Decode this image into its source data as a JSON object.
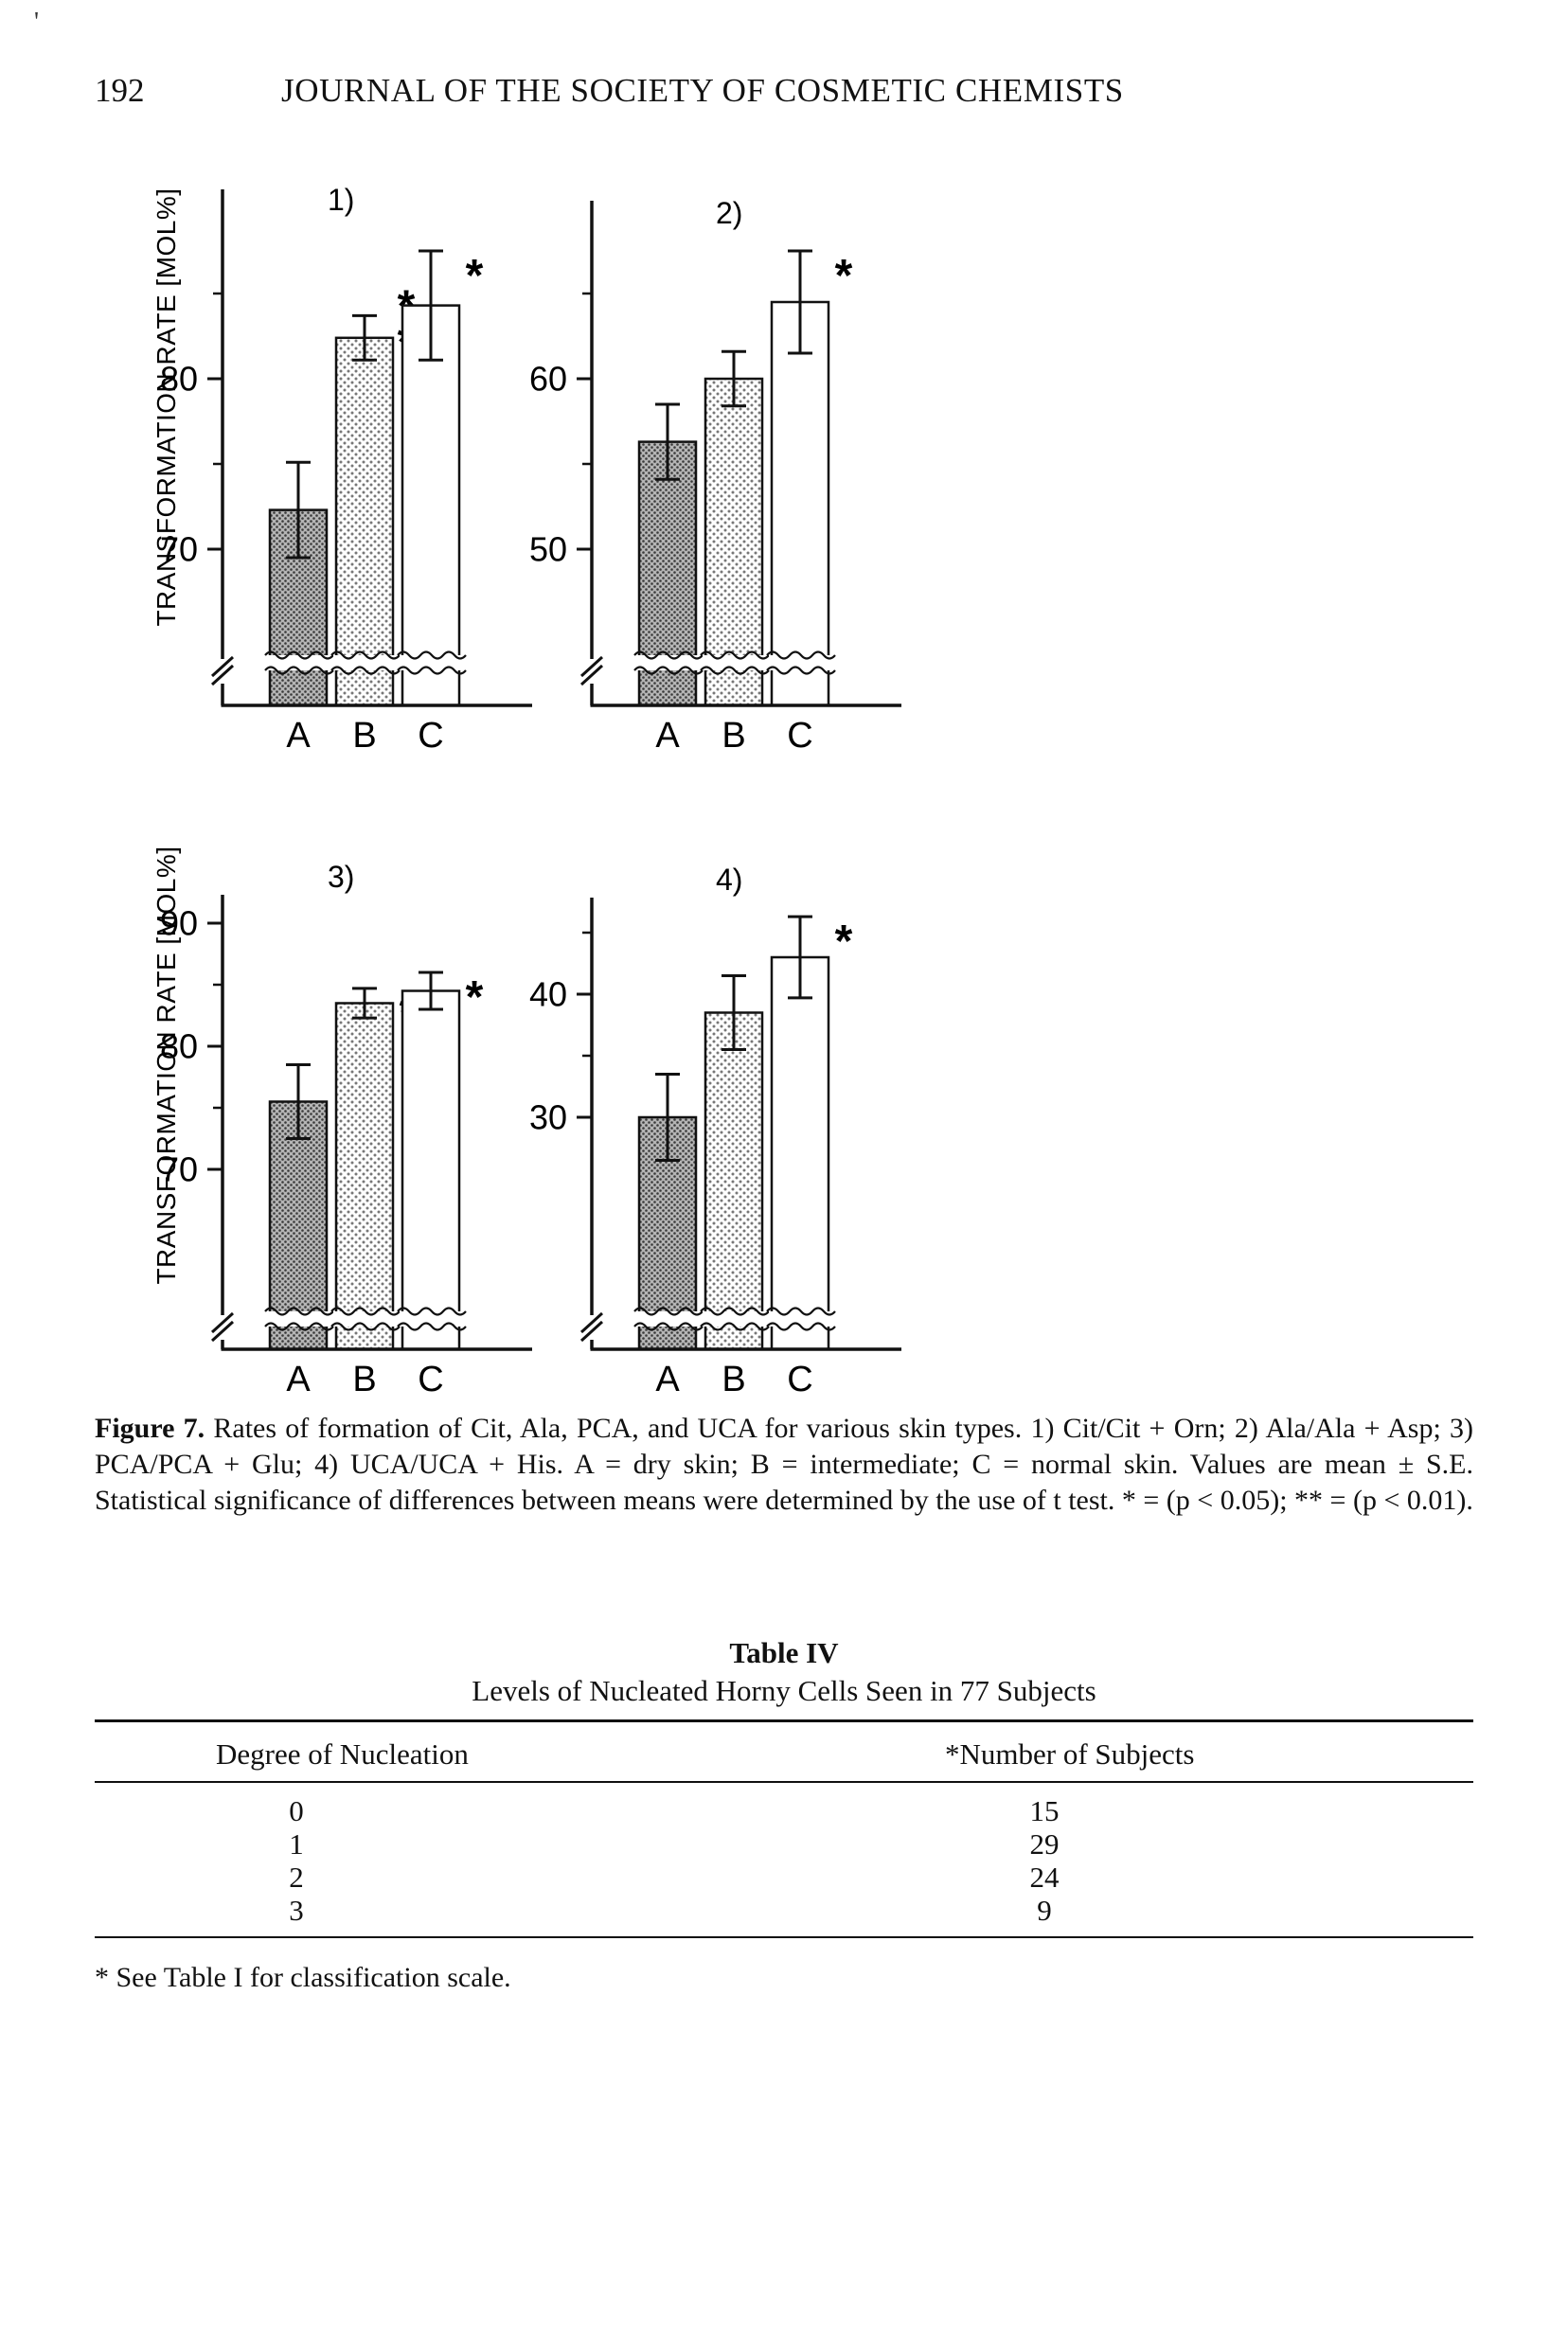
{
  "header": {
    "page_number": "192",
    "journal_title": "JOURNAL OF THE SOCIETY OF COSMETIC CHEMISTS"
  },
  "stray_mark": "'",
  "chart_data": [
    {
      "type": "bar",
      "panel_label": "1)",
      "measure": "Cit/Cit + Orn",
      "ylabel": "TRANSFORMATION RATE [MOL%]",
      "ylabel_shown": true,
      "categories": [
        "A",
        "B",
        "C"
      ],
      "values": [
        72.3,
        82.4,
        84.3
      ],
      "errors": [
        2.8,
        1.3,
        3.2
      ],
      "significance": [
        "",
        "**",
        "*"
      ],
      "y_ticks": [
        70,
        80
      ],
      "axis_break": true,
      "bar_fills": [
        "dark-stipple",
        "light-stipple",
        "white"
      ]
    },
    {
      "type": "bar",
      "panel_label": "2)",
      "measure": "Ala/Ala + Asp",
      "ylabel": "TRANSFORMATION RATE [MOL%]",
      "ylabel_shown": false,
      "categories": [
        "A",
        "B",
        "C"
      ],
      "values": [
        56.3,
        60.0,
        64.5
      ],
      "errors": [
        2.2,
        1.6,
        3.0
      ],
      "significance": [
        "",
        "",
        "*"
      ],
      "y_ticks": [
        50,
        60
      ],
      "axis_break": true,
      "bar_fills": [
        "dark-stipple",
        "light-stipple",
        "white"
      ]
    },
    {
      "type": "bar",
      "panel_label": "3)",
      "measure": "PCA/PCA + Glu",
      "ylabel": "TRANSFORMATION RATE [MOL%]",
      "ylabel_shown": true,
      "categories": [
        "A",
        "B",
        "C"
      ],
      "values": [
        75.5,
        83.5,
        84.5
      ],
      "errors": [
        3.0,
        1.2,
        1.5
      ],
      "significance": [
        "",
        "*",
        "*"
      ],
      "y_ticks": [
        70,
        80,
        90
      ],
      "axis_break": true,
      "bar_fills": [
        "dark-stipple",
        "light-stipple",
        "white"
      ]
    },
    {
      "type": "bar",
      "panel_label": "4)",
      "measure": "UCA/UCA + His",
      "ylabel": "TRANSFORMATION RATE [MOL%]",
      "ylabel_shown": false,
      "categories": [
        "A",
        "B",
        "C"
      ],
      "values": [
        30.0,
        38.5,
        43.0
      ],
      "errors": [
        3.5,
        3.0,
        3.3
      ],
      "significance": [
        "",
        "",
        "*"
      ],
      "y_ticks": [
        30,
        40
      ],
      "axis_break": true,
      "bar_fills": [
        "dark-stipple",
        "light-stipple",
        "white"
      ]
    }
  ],
  "caption": {
    "label": "Figure 7.",
    "text": "Rates of formation of Cit, Ala, PCA, and UCA for various skin types. 1) Cit/Cit + Orn; 2) Ala/Ala + Asp; 3) PCA/PCA + Glu; 4) UCA/UCA + His. A = dry skin; B = intermediate; C = normal skin. Values are mean ± S.E. Statistical significance of differences between means were determined by the use of t test. * = (p < 0.05); ** = (p < 0.01)."
  },
  "table": {
    "title": "Table IV",
    "subtitle": "Levels of Nucleated Horny Cells Seen in 77 Subjects",
    "columns": [
      "Degree of Nucleation",
      "*Number of Subjects"
    ],
    "rows": [
      [
        "0",
        "15"
      ],
      [
        "1",
        "29"
      ],
      [
        "2",
        "24"
      ],
      [
        "3",
        "9"
      ]
    ]
  },
  "footnote": "* See Table I for classification scale."
}
